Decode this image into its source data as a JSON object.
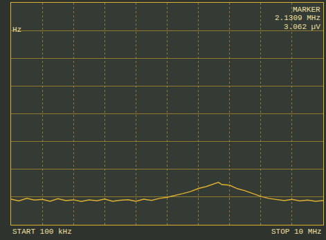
{
  "chart_data": {
    "type": "line",
    "annotations": {
      "marker_title": "MARKER",
      "marker_freq": "2.1309 MHz",
      "marker_level": "3.062 µV",
      "left_unit": "Hz",
      "start": "START 100 kHz",
      "stop": "STOP 10 MHz"
    },
    "x": [
      0.1,
      0.1122,
      0.1259,
      0.1413,
      0.1585,
      0.1778,
      0.1995,
      0.2239,
      0.2512,
      0.2818,
      0.3162,
      0.3548,
      0.3981,
      0.4467,
      0.5012,
      0.5623,
      0.631,
      0.7079,
      0.7943,
      0.8913,
      1,
      1.122,
      1.259,
      1.413,
      1.585,
      1.778,
      1.995,
      2.1309,
      2.239,
      2.512,
      2.818,
      3.162,
      3.548,
      3.981,
      4.467,
      5.012,
      5.623,
      6.31,
      7.079,
      7.943,
      8.913,
      10
    ],
    "values": [
      1.85,
      1.72,
      1.9,
      1.78,
      1.83,
      1.7,
      1.88,
      1.75,
      1.8,
      1.68,
      1.79,
      1.73,
      1.86,
      1.7,
      1.77,
      1.81,
      1.69,
      1.84,
      1.76,
      1.9,
      1.98,
      2.1,
      2.25,
      2.4,
      2.62,
      2.75,
      2.95,
      3.062,
      2.9,
      2.85,
      2.6,
      2.45,
      2.25,
      2.05,
      1.9,
      1.82,
      1.75,
      1.83,
      1.72,
      1.78,
      1.7,
      1.74
    ],
    "color": "#e0b030",
    "log": "x",
    "xlim": [
      0.1,
      10
    ],
    "xticks": [
      0.1,
      0.1585,
      0.2512,
      0.3981,
      0.631,
      1,
      1.585,
      2.512,
      3.981,
      6.31,
      10
    ],
    "ylim": [
      0,
      16
    ],
    "yticks": [
      0,
      2,
      4,
      6,
      8,
      10,
      12,
      14,
      16
    ],
    "grid": true,
    "tick_labels": false
  }
}
